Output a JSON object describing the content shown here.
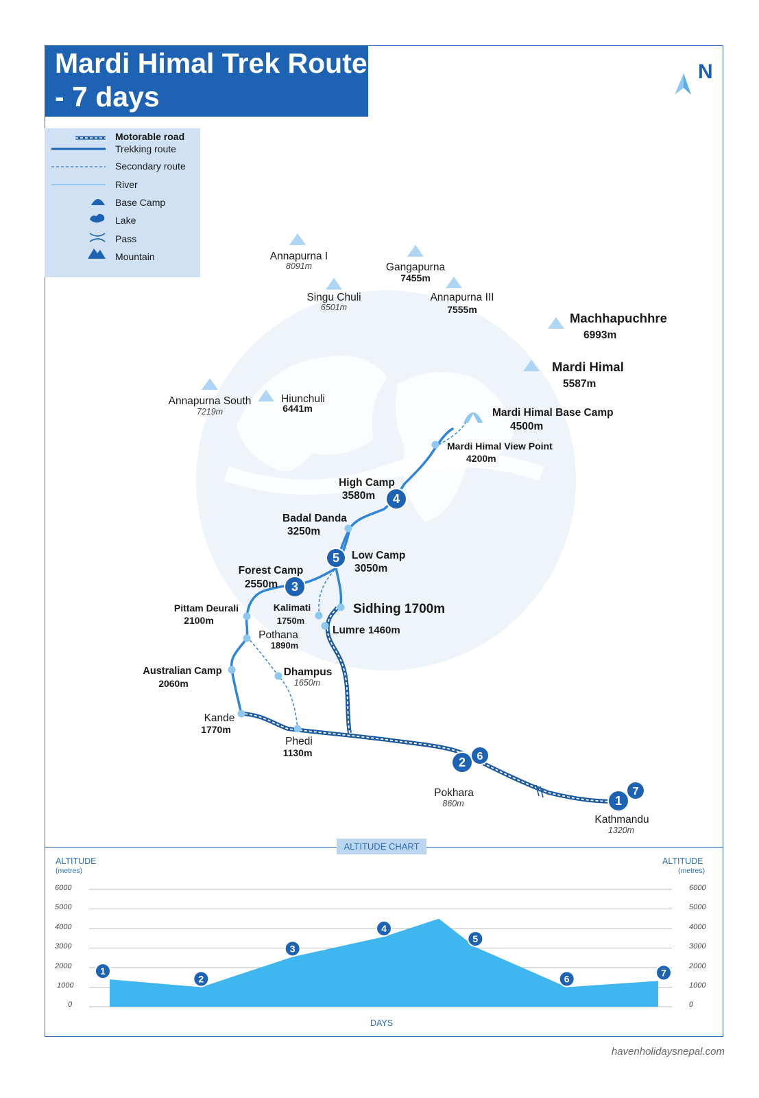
{
  "title": "Mardi Himal Trek Route - 7 days",
  "compass": "N",
  "colors": {
    "route": "#2f86d8",
    "road": "#1e5aa0",
    "badge": "#1e63b3",
    "node": "#8cc8f0",
    "chart_fill": "#3fb6ee"
  },
  "legend": [
    {
      "label": "Motorable road",
      "bold": true,
      "icon": "motorable-road-icon"
    },
    {
      "label": "Trekking route",
      "icon": "trekking-route-icon"
    },
    {
      "label": "Secondary route",
      "icon": "secondary-route-icon"
    },
    {
      "label": "River",
      "icon": "river-icon"
    },
    {
      "label": "Base Camp",
      "icon": "base-camp-icon"
    },
    {
      "label": "Lake",
      "icon": "lake-icon"
    },
    {
      "label": "Pass",
      "icon": "pass-icon"
    },
    {
      "label": "Mountain",
      "icon": "mountain-icon"
    }
  ],
  "peaks": [
    {
      "name": "Annapurna I",
      "elev": "8091m"
    },
    {
      "name": "Gangapurna",
      "elev": "7455m"
    },
    {
      "name": "Singu Chuli",
      "elev": "6501m"
    },
    {
      "name": "Annapurna III",
      "elev": "7555m"
    },
    {
      "name": "Machhapuchhre",
      "elev": "6993m"
    },
    {
      "name": "Mardi Himal",
      "elev": "5587m"
    },
    {
      "name": "Annapurna South",
      "elev": "7219m"
    },
    {
      "name": "Hiunchuli",
      "elev": "6441m"
    }
  ],
  "places": [
    {
      "name": "Mardi Himal Base Camp",
      "elev": "4500m"
    },
    {
      "name": "Mardi Himal View Point",
      "elev": "4200m"
    },
    {
      "name": "High Camp",
      "elev": "3580m"
    },
    {
      "name": "Badal Danda",
      "elev": "3250m"
    },
    {
      "name": "Low Camp",
      "elev": "3050m"
    },
    {
      "name": "Forest Camp",
      "elev": "2550m"
    },
    {
      "name": "Sidhing 1700m",
      "elev": ""
    },
    {
      "name": "Pittam Deurali",
      "elev": "2100m"
    },
    {
      "name": "Kalimati",
      "elev": "1750m"
    },
    {
      "name": "Lumre",
      "elev": "1460m"
    },
    {
      "name": "Pothana",
      "elev": "1890m"
    },
    {
      "name": "Australian Camp",
      "elev": "2060m"
    },
    {
      "name": "Dhampus",
      "elev": "1650m"
    },
    {
      "name": "Kande",
      "elev": "1770m"
    },
    {
      "name": "Phedi",
      "elev": "1130m"
    },
    {
      "name": "Pokhara",
      "elev": "860m"
    },
    {
      "name": "Kathmandu",
      "elev": "1320m"
    }
  ],
  "day_badges": [
    "1",
    "2",
    "3",
    "4",
    "5",
    "6",
    "7"
  ],
  "chart": {
    "tab": "ALTITUDE CHART",
    "left_axis_title": "ALTITUDE",
    "left_axis_sub": "(metres)",
    "right_axis_title": "ALTITUDE",
    "right_axis_sub": "(metres)",
    "ticks": [
      "6000",
      "5000",
      "4000",
      "3000",
      "2000",
      "1000",
      "0"
    ],
    "x_label": "DAYS"
  },
  "chart_data": {
    "type": "area",
    "ylabel": "ALTITUDE (metres)",
    "xlabel": "DAYS",
    "ylim": [
      0,
      6000
    ],
    "x": [
      1,
      2,
      3,
      4,
      4.6,
      5,
      6,
      7
    ],
    "values": [
      1400,
      1000,
      2550,
      3580,
      4500,
      3050,
      1000,
      1320
    ],
    "day_markers": [
      {
        "day": "1",
        "altitude": 1400
      },
      {
        "day": "2",
        "altitude": 1000
      },
      {
        "day": "3",
        "altitude": 2550
      },
      {
        "day": "4",
        "altitude": 3580
      },
      {
        "day": "5",
        "altitude": 3050
      },
      {
        "day": "6",
        "altitude": 1000
      },
      {
        "day": "7",
        "altitude": 1320
      }
    ],
    "grid": true
  },
  "source": "havenholidaysnepal.com"
}
